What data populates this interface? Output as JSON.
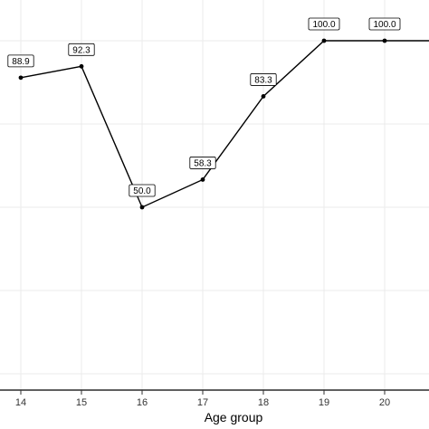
{
  "chart_data": {
    "type": "line",
    "title": "",
    "xlabel": "Age group",
    "ylabel": "",
    "x": [
      14,
      15,
      16,
      17,
      18,
      19,
      20,
      21
    ],
    "y": [
      88.9,
      92.3,
      50.0,
      58.3,
      83.3,
      100.0,
      100.0,
      100.0
    ],
    "point_labels": [
      "88.9",
      "92.3",
      "50.0",
      "58.3",
      "83.3",
      "100.0",
      "100.0",
      ""
    ],
    "x_tick_labels": [
      "14",
      "15",
      "16",
      "17",
      "18",
      "19",
      "20"
    ],
    "xlim": [
      14,
      21
    ],
    "ylim": [
      0,
      100
    ],
    "grid": true,
    "legend": "none"
  }
}
